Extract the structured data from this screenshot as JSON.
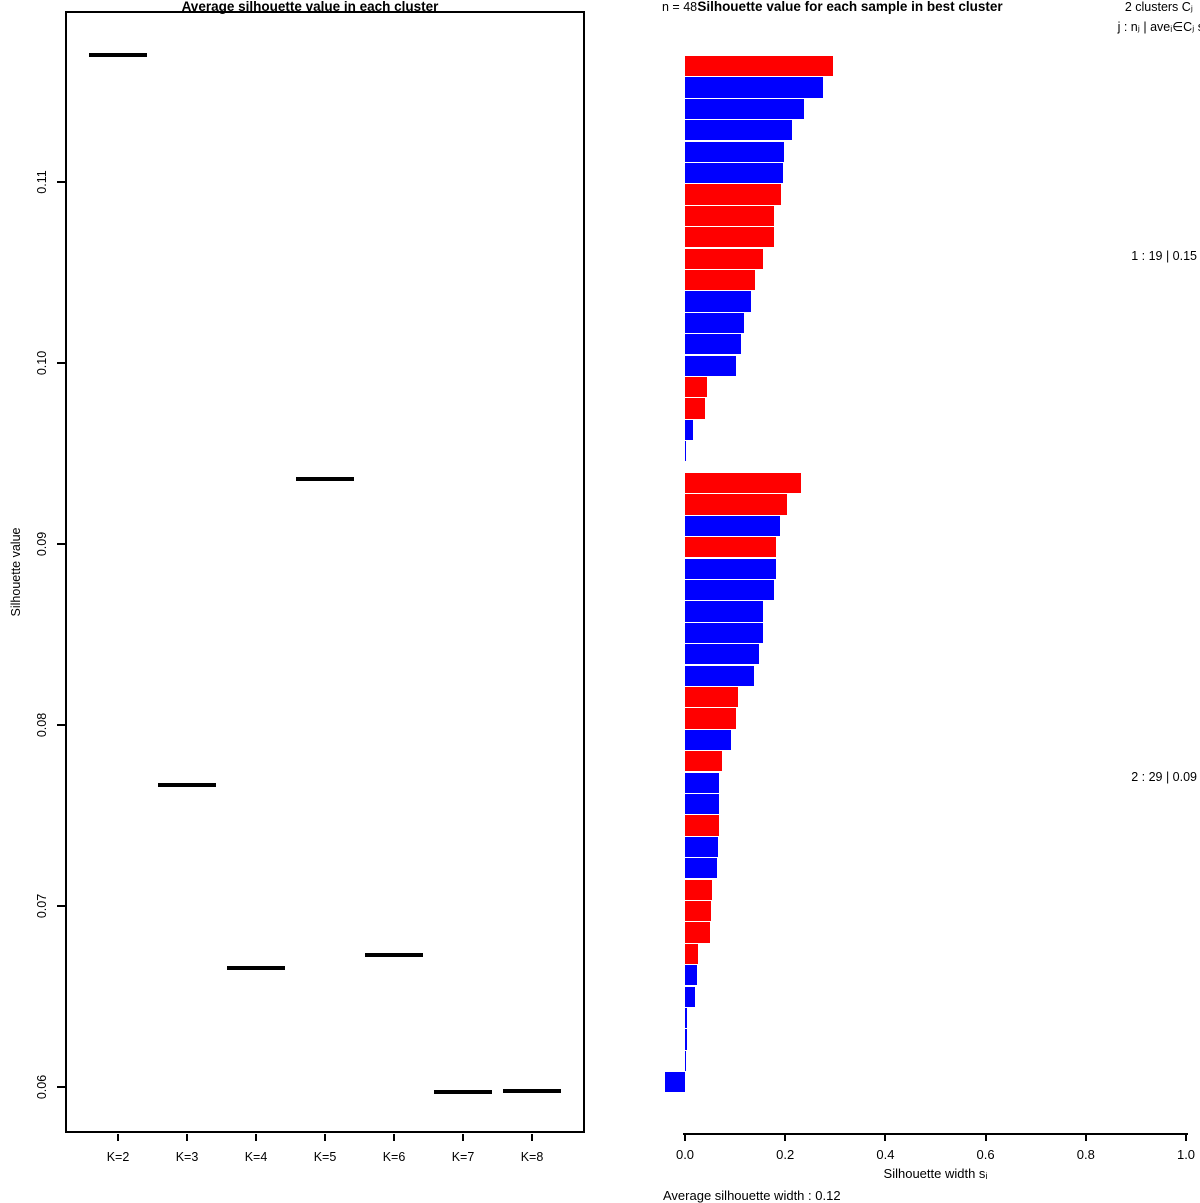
{
  "page": {
    "background": "#ffffff"
  },
  "palette": {
    "red": "#ff0000",
    "blue": "#0000ff",
    "axis": "#000000"
  },
  "chart_data": [
    {
      "type": "scatter",
      "marker": "horizontal-segment",
      "title": "Average silhouette value in each cluster",
      "xlabel": "",
      "ylabel": "Silhouette value",
      "categories": [
        "K=2",
        "K=3",
        "K=4",
        "K=5",
        "K=6",
        "K=7",
        "K=8"
      ],
      "values": [
        0.117,
        0.0767,
        0.0666,
        0.0936,
        0.0673,
        0.0597,
        0.0598
      ],
      "yticks": {
        "values": [
          0.06,
          0.07,
          0.08,
          0.09,
          0.1,
          0.11
        ],
        "labels": [
          "0.06",
          "0.07",
          "0.08",
          "0.09",
          "0.10",
          "0.11"
        ]
      },
      "ylim": [
        0.0575,
        0.1195
      ],
      "grid": false,
      "legend": "none"
    },
    {
      "type": "bar",
      "orientation": "horizontal",
      "title": "Silhouette value for each sample in best cluster",
      "n_label": "n = 48",
      "annotation_line1": "2 clusters Cⱼ",
      "annotation_line2": "j :  nⱼ | aveᵢ∈Cⱼ  sᵢ",
      "xlabel": "Silhouette width sᵢ",
      "footer": "Average silhouette width : 0.12",
      "xticks": {
        "values": [
          0,
          0.2,
          0.4,
          0.6,
          0.8,
          1.0
        ],
        "labels": [
          "0.0",
          "0.2",
          "0.4",
          "0.6",
          "0.8",
          "1.0"
        ]
      },
      "xlim": [
        0,
        1
      ],
      "grid": false,
      "clusters": [
        {
          "name": "1",
          "size": 19,
          "avg_width": 0.15,
          "label": "1 :  19  |  0.15",
          "values": [
            0.295,
            0.275,
            0.238,
            0.214,
            0.198,
            0.196,
            0.192,
            0.178,
            0.178,
            0.156,
            0.14,
            0.131,
            0.118,
            0.112,
            0.102,
            0.044,
            0.04,
            0.015,
            0.002
          ],
          "colors": [
            "red",
            "blue",
            "blue",
            "blue",
            "blue",
            "blue",
            "red",
            "red",
            "red",
            "red",
            "red",
            "blue",
            "blue",
            "blue",
            "blue",
            "red",
            "red",
            "blue",
            "blue"
          ]
        },
        {
          "name": "2",
          "size": 29,
          "avg_width": 0.09,
          "label": "2 :  29  |  0.09",
          "values": [
            0.232,
            0.204,
            0.19,
            0.182,
            0.182,
            0.178,
            0.156,
            0.156,
            0.148,
            0.138,
            0.106,
            0.102,
            0.092,
            0.074,
            0.068,
            0.068,
            0.068,
            0.066,
            0.064,
            0.054,
            0.052,
            0.05,
            0.026,
            0.024,
            0.02,
            0.004,
            0.004,
            0.002,
            -0.04
          ],
          "colors": [
            "red",
            "red",
            "blue",
            "red",
            "blue",
            "blue",
            "blue",
            "blue",
            "blue",
            "blue",
            "red",
            "red",
            "blue",
            "red",
            "blue",
            "blue",
            "red",
            "blue",
            "blue",
            "red",
            "red",
            "red",
            "red",
            "blue",
            "blue",
            "blue",
            "blue",
            "blue",
            "blue"
          ]
        }
      ]
    }
  ]
}
